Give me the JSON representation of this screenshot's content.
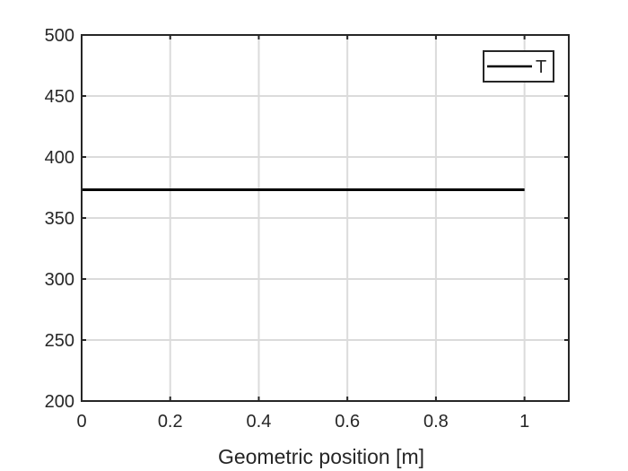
{
  "chart_data": {
    "type": "line",
    "title": "",
    "xlabel": "Geometric position [m]",
    "ylabel": "",
    "xlim": [
      0,
      1.1
    ],
    "ylim": [
      200,
      500
    ],
    "xticks": [
      0,
      0.2,
      0.4,
      0.6,
      0.8,
      1
    ],
    "xtick_labels": [
      "0",
      "0.2",
      "0.4",
      "0.6",
      "0.8",
      "1"
    ],
    "yticks": [
      200,
      250,
      300,
      350,
      400,
      450,
      500
    ],
    "ytick_labels": [
      "200",
      "250",
      "300",
      "350",
      "400",
      "450",
      "500"
    ],
    "grid": true,
    "legend_position": "top-right",
    "series": [
      {
        "name": "T",
        "color": "#000000",
        "x": [
          0,
          0.1,
          0.2,
          0.3,
          0.4,
          0.5,
          0.6,
          0.7,
          0.8,
          0.9,
          1.0
        ],
        "y": [
          373.15,
          373.15,
          373.15,
          373.15,
          373.15,
          373.15,
          373.15,
          373.15,
          373.15,
          373.15,
          373.15
        ]
      }
    ]
  }
}
